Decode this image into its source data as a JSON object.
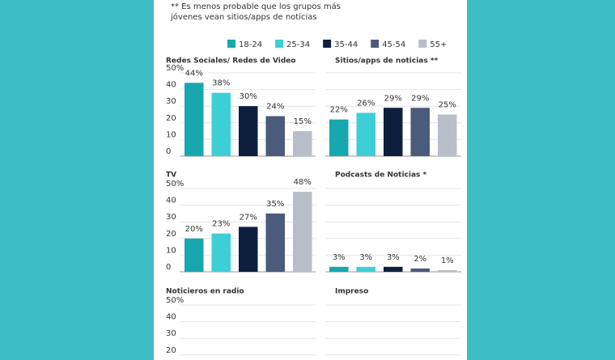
{
  "note": [
    "** Es menos probable que los grupos más",
    "jóvenes vean sitios/apps de noticias"
  ],
  "legend": {
    "categories": [
      "18-24",
      "25-34",
      "35-44",
      "45-54",
      "55+"
    ],
    "colors": [
      "#17a7ae",
      "#3ecfd6",
      "#0e1f3d",
      "#4b5b7b",
      "#b9bec8"
    ]
  },
  "chart_data": [
    {
      "type": "bar",
      "title": "Redes Sociales/ Redes de Video",
      "values": [
        44,
        38,
        30,
        24,
        15
      ],
      "value_labels": [
        "44%",
        "38%",
        "30%",
        "24%",
        "15%"
      ],
      "ylim": [
        0,
        50
      ],
      "yticks": [
        0,
        10,
        20,
        30,
        40,
        {
          "value": 50,
          "label": "50%"
        }
      ],
      "grid": true,
      "tick_labels": true
    },
    {
      "type": "bar",
      "title": "Sitios/apps de noticias **",
      "values": [
        22,
        26,
        29,
        29,
        25
      ],
      "value_labels": [
        "22%",
        "26%",
        "29%",
        "29%",
        "25%"
      ],
      "ylim": [
        0,
        50
      ],
      "yticks": [
        0,
        10,
        20,
        30,
        40,
        50
      ],
      "grid": true,
      "tick_labels": false
    },
    {
      "type": "bar",
      "title": "TV",
      "values": [
        20,
        23,
        27,
        35,
        48
      ],
      "value_labels": [
        "20%",
        "23%",
        "27%",
        "35%",
        "48%"
      ],
      "ylim": [
        0,
        50
      ],
      "yticks": [
        0,
        10,
        20,
        30,
        40,
        {
          "value": 50,
          "label": "50%"
        }
      ],
      "grid": true,
      "tick_labels": true
    },
    {
      "type": "bar",
      "title": "Podcasts de Noticias *",
      "values": [
        3,
        3,
        3,
        2,
        1
      ],
      "value_labels": [
        "3%",
        "3%",
        "3%",
        "2%",
        "1%"
      ],
      "ylim": [
        0,
        50
      ],
      "yticks": [
        0,
        10,
        20,
        30,
        40,
        50
      ],
      "grid": true,
      "tick_labels": false
    },
    {
      "type": "bar",
      "title": "Noticieros en radio",
      "ylim": [
        0,
        50
      ],
      "yticks": [
        20,
        30,
        40,
        {
          "value": 50,
          "label": "50%"
        }
      ],
      "grid": true,
      "tick_labels": true
    },
    {
      "type": "bar",
      "title": "Impreso",
      "ylim": [
        0,
        50
      ],
      "yticks": [
        20,
        30,
        40,
        50
      ],
      "grid": true,
      "tick_labels": false
    }
  ]
}
